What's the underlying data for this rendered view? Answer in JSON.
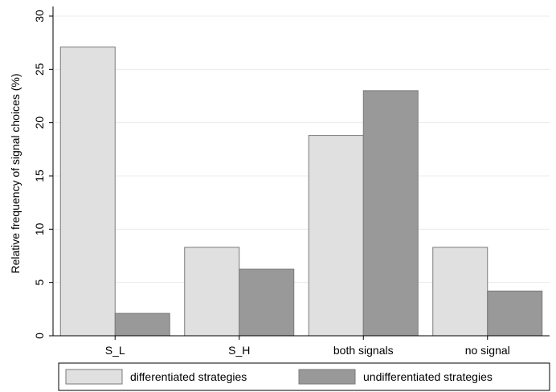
{
  "chart_data": {
    "type": "bar",
    "title": "",
    "xlabel": "",
    "ylabel": "Relative frequency of signal choices (%)",
    "ylim": [
      0,
      30
    ],
    "yticks": [
      0,
      5,
      10,
      15,
      20,
      25,
      30
    ],
    "ytick_labels": [
      "0",
      "5",
      "10",
      "15",
      "20",
      "25",
      "30"
    ],
    "grid": true,
    "legend_position": "bottom",
    "categories": [
      "S_L",
      "S_H",
      "both signals",
      "no signal"
    ],
    "series": [
      {
        "name": "differentiated strategies",
        "color": "#e0e0e0",
        "values": [
          27.1,
          8.3,
          18.8,
          8.3
        ]
      },
      {
        "name": "undifferentiated strategies",
        "color": "#999999",
        "values": [
          2.1,
          6.25,
          23.0,
          4.2
        ]
      }
    ]
  }
}
